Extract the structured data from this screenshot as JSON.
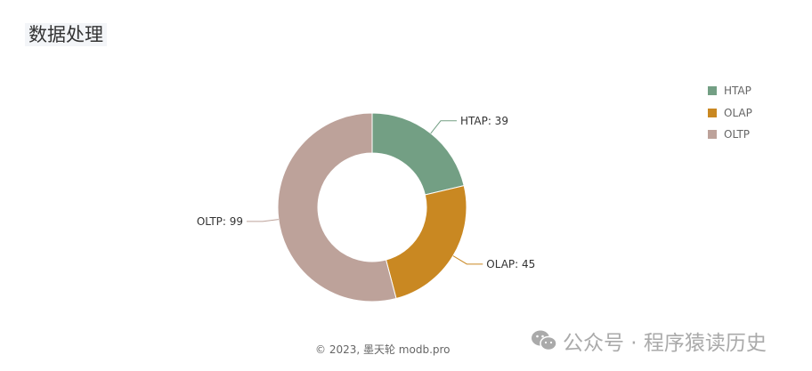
{
  "chart_data": {
    "type": "pie",
    "title": "数据处理",
    "categories": [
      "HTAP",
      "OLAP",
      "OLTP"
    ],
    "values": [
      39,
      45,
      99
    ],
    "colors": [
      "#739f84",
      "#c98822",
      "#bda29a"
    ],
    "donut": true,
    "legend": "top-right",
    "label_format": "{name}: {value}"
  },
  "footer": "© 2023, 墨天轮 modb.pro",
  "watermark": {
    "icon": "wechat-icon",
    "text": "公众号 · 程序猿读历史"
  }
}
